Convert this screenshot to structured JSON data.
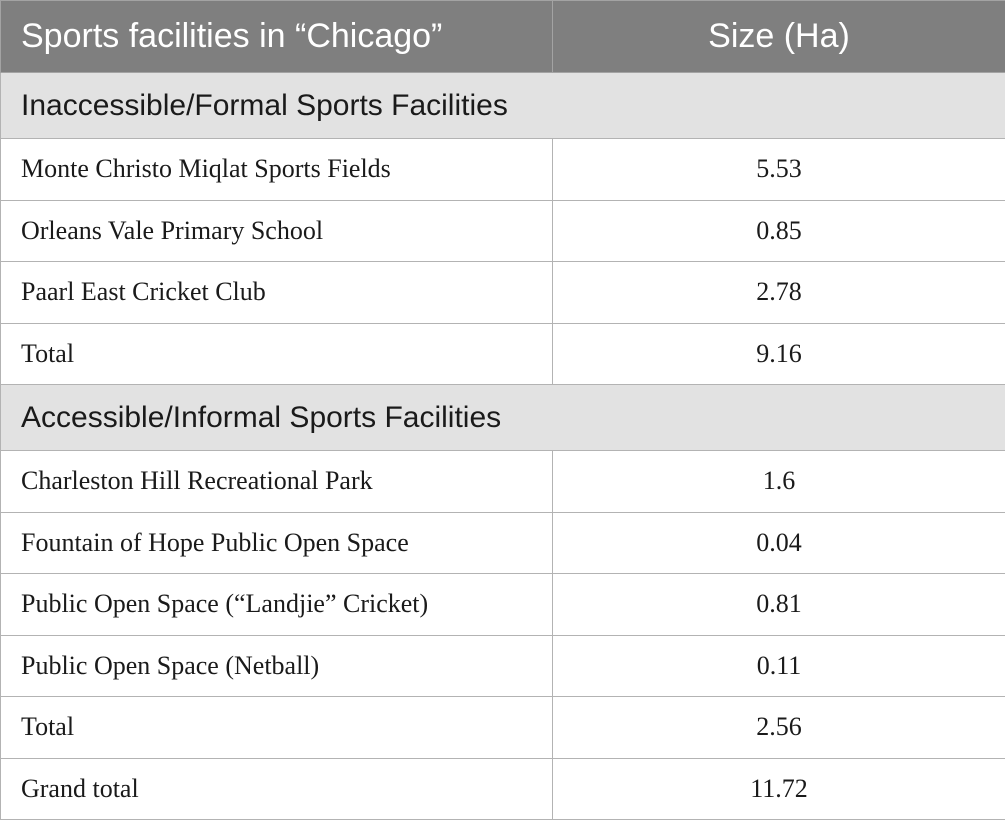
{
  "header": {
    "facility_col": "Sports facilities in “Chicago”",
    "size_col": "Size (Ha)"
  },
  "sections": [
    {
      "title": "Inaccessible/Formal Sports Facilities",
      "rows": [
        {
          "name": "Monte Christo Miqlat Sports Fields",
          "size": "5.53"
        },
        {
          "name": "Orleans Vale Primary School",
          "size": "0.85"
        },
        {
          "name": "Paarl East Cricket Club",
          "size": "2.78"
        },
        {
          "name": "Total",
          "size": "9.16"
        }
      ]
    },
    {
      "title": "Accessible/Informal Sports Facilities",
      "rows": [
        {
          "name": "Charleston Hill Recreational Park",
          "size": "1.6"
        },
        {
          "name": "Fountain of Hope Public Open Space",
          "size": "0.04"
        },
        {
          "name": "Public Open Space (“Landjie” Cricket)",
          "size": "0.81"
        },
        {
          "name": "Public Open Space (Netball)",
          "size": "0.11"
        },
        {
          "name": "Total",
          "size": "2.56"
        }
      ]
    }
  ],
  "grand_total": {
    "name": "Grand total",
    "size": "11.72"
  }
}
